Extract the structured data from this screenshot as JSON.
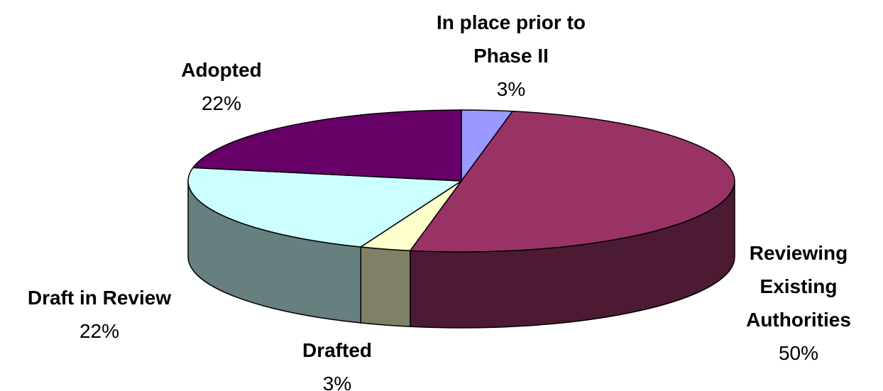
{
  "chart_data": {
    "type": "pie",
    "categories": [
      "In place prior to Phase II",
      "Reviewing Existing Authorities",
      "Drafted",
      "Draft in Review",
      "Adopted"
    ],
    "values": [
      3,
      50,
      3,
      22,
      22
    ],
    "value_labels": [
      "3%",
      "50%",
      "3%",
      "22%",
      "22%"
    ],
    "colors": [
      "#9999ff",
      "#993366",
      "#ffffcc",
      "#ccffff",
      "#660066"
    ]
  }
}
